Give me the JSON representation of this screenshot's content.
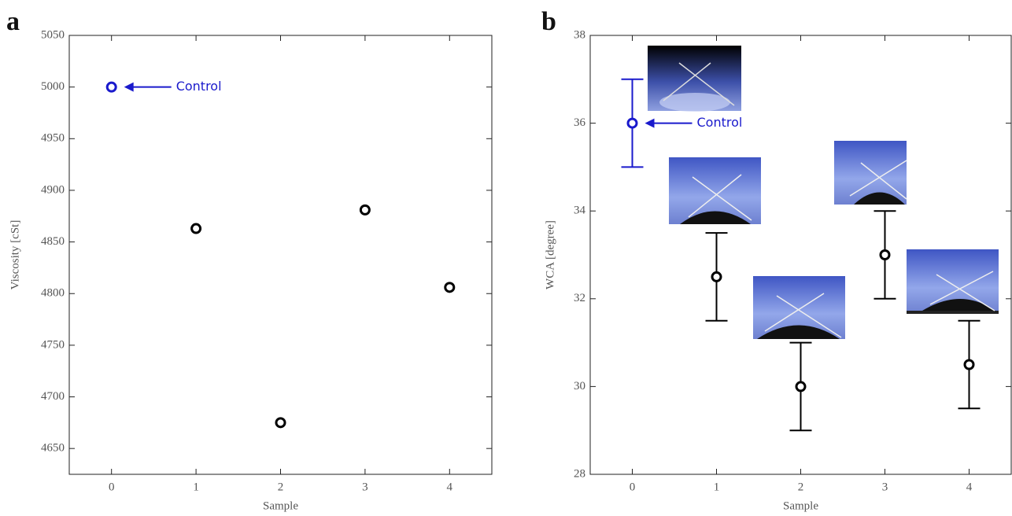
{
  "chart_data": [
    {
      "type": "scatter",
      "panel_label": "a",
      "x_label": "Sample",
      "y_label": "Viscosity [cSt]",
      "x": [
        0,
        1,
        2,
        3,
        4
      ],
      "values": [
        5000,
        4863,
        4675,
        4881,
        4806
      ],
      "point_colors": [
        "#1a1acc",
        "#000000",
        "#000000",
        "#000000",
        "#000000"
      ],
      "annotation": "Control",
      "xlim": [
        -0.5,
        4.5
      ],
      "xticks": [
        0,
        1,
        2,
        3,
        4
      ],
      "ylim": [
        4625,
        5050
      ],
      "yticks": [
        4650,
        4700,
        4750,
        4800,
        4850,
        4900,
        4950,
        5000,
        5050
      ]
    },
    {
      "type": "scatter",
      "panel_label": "b",
      "x_label": "Sample",
      "y_label": "WCA [degree]",
      "x": [
        0,
        1,
        2,
        3,
        4
      ],
      "values": [
        36,
        32.5,
        30,
        33,
        30.5
      ],
      "errors": [
        1,
        1,
        1,
        1,
        1
      ],
      "point_colors": [
        "#1a1acc",
        "#000000",
        "#000000",
        "#000000",
        "#000000"
      ],
      "annotation": "Control",
      "xlim": [
        -0.5,
        4.5
      ],
      "xticks": [
        0,
        1,
        2,
        3,
        4
      ],
      "ylim": [
        28,
        38
      ],
      "yticks": [
        28,
        30,
        32,
        34,
        36,
        38
      ]
    }
  ]
}
